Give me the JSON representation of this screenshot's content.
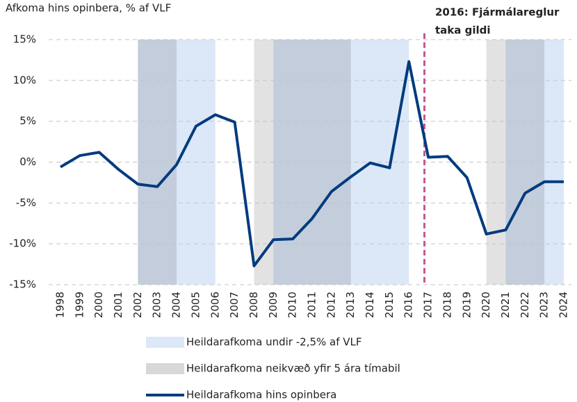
{
  "chart_data": {
    "type": "line",
    "title": "Afkoma hins opinbera, % af VLF",
    "categories": [
      "1998",
      "1999",
      "2000",
      "2001",
      "2002",
      "2003",
      "2004",
      "2005",
      "2006",
      "2007",
      "2008",
      "2009",
      "2010",
      "2011",
      "2012",
      "2013",
      "2014",
      "2015",
      "2016",
      "2017",
      "2018",
      "2019",
      "2020",
      "2021",
      "2022",
      "2023",
      "2024"
    ],
    "series": [
      {
        "name": "Heildarafkoma hins opinbera",
        "color": "#003b7e",
        "values": [
          -0.6,
          0.8,
          1.2,
          -0.9,
          -2.7,
          -3.0,
          -0.3,
          4.4,
          5.8,
          4.9,
          -12.7,
          -9.5,
          -9.4,
          -6.9,
          -3.6,
          -1.8,
          -0.1,
          -0.7,
          12.3,
          0.6,
          0.7,
          -1.9,
          -8.8,
          -8.3,
          -3.8,
          -2.4,
          -2.4
        ]
      }
    ],
    "bands": [
      {
        "name": "Heildarafkoma undir -2,5% af VLF",
        "color": "#dce8f8",
        "spans": [
          [
            2002,
            2006
          ],
          [
            2009,
            2016
          ],
          [
            2021,
            2024
          ]
        ]
      },
      {
        "name": "Heildarafkoma neikvæð yfir 5 ára tímabil",
        "color": "#d8d8d8",
        "spans": [
          [
            2002,
            2004
          ],
          [
            2008,
            2013
          ],
          [
            2020,
            2023
          ]
        ]
      }
    ],
    "ylim": [
      -15,
      15
    ],
    "yticks": [
      {
        "value": -15,
        "label": "-15%"
      },
      {
        "value": -10,
        "label": "-10%"
      },
      {
        "value": -5,
        "label": "-5%"
      },
      {
        "value": 0,
        "label": "0%"
      },
      {
        "value": 5,
        "label": "5%"
      },
      {
        "value": 10,
        "label": "10%"
      },
      {
        "value": 15,
        "label": "15%"
      }
    ],
    "grid": true,
    "vline": {
      "x": 2016.8,
      "color": "#c8578f",
      "label": [
        "2016: Fjármálareglur",
        "taka gildi"
      ]
    }
  }
}
